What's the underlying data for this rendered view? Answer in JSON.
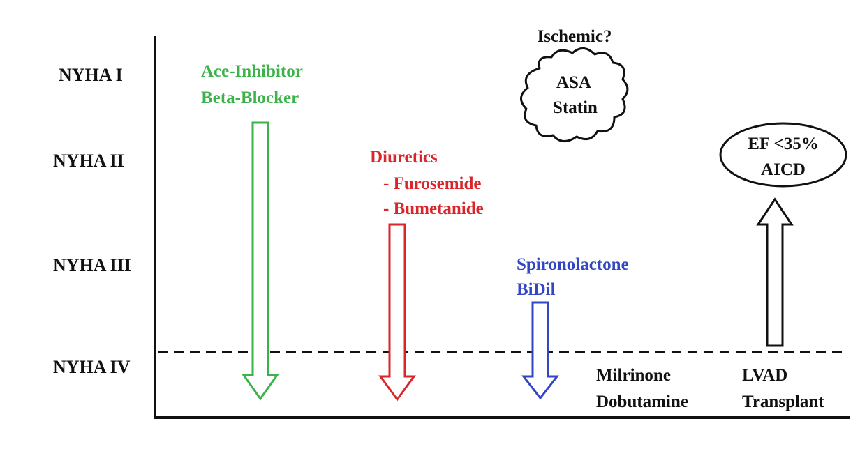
{
  "levels": [
    "NYHA I",
    "NYHA II",
    "NYHA III",
    "NYHA IV"
  ],
  "green_group": {
    "lines": [
      "Ace-Inhibitor",
      "Beta-Blocker"
    ],
    "color": "#3cb34a"
  },
  "red_group": {
    "lines": [
      "Diuretics",
      "- Furosemide",
      "- Bumetanide"
    ],
    "color": "#d9262b"
  },
  "blue_group": {
    "lines": [
      "Spironolactone",
      "BiDil"
    ],
    "color": "#3347c4"
  },
  "ischemic": {
    "label": "Ischemic?",
    "cloud_lines": [
      "ASA",
      "Statin"
    ]
  },
  "oval": {
    "lines": [
      "EF <35%",
      "AICD"
    ]
  },
  "inotropes": [
    "Milrinone",
    "Dobutamine"
  ],
  "advanced": [
    "LVAD",
    "Transplant"
  ],
  "text_color": "#111111"
}
